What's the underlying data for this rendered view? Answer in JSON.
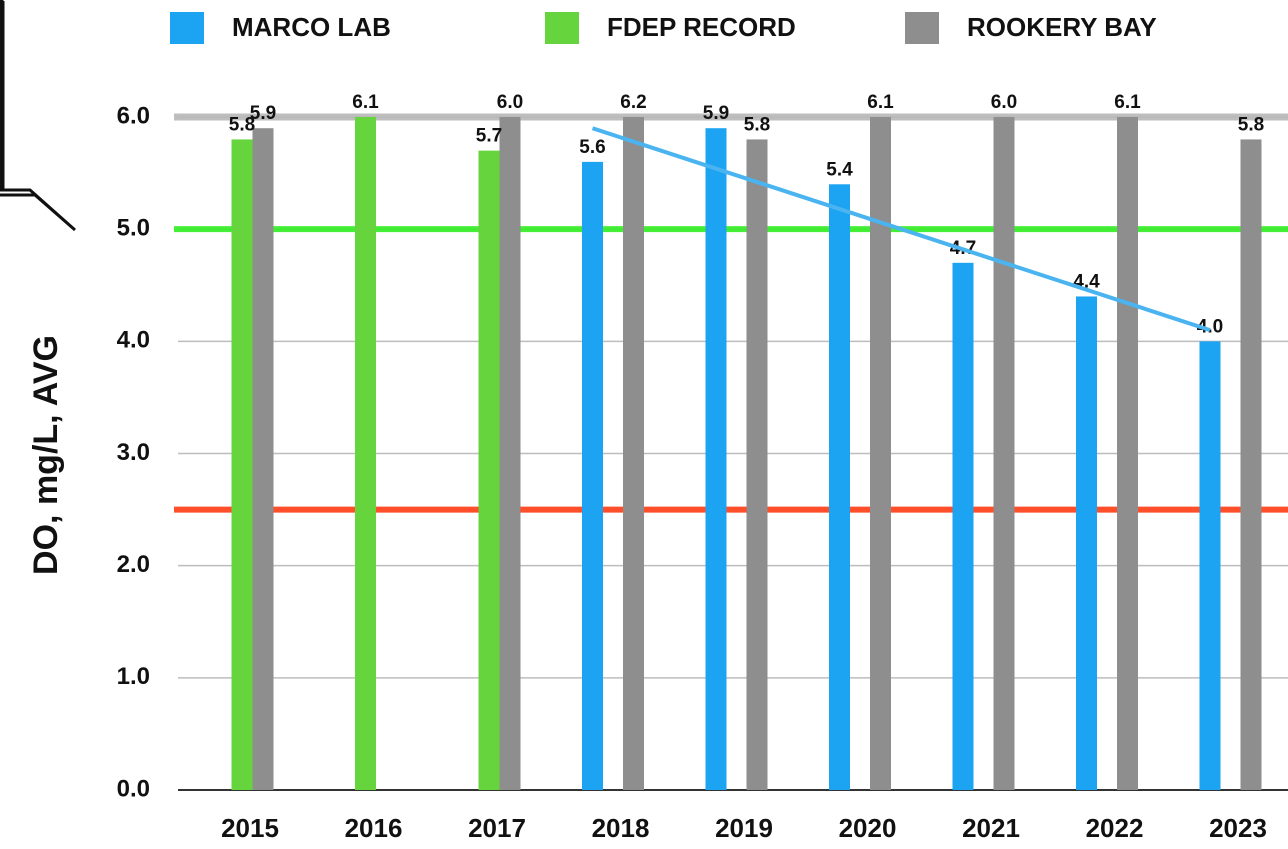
{
  "chart_data": {
    "type": "bar",
    "y_label": "DO, mg/L, AVG",
    "categories": [
      "2015",
      "2016",
      "2017",
      "2018",
      "2019",
      "2020",
      "2021",
      "2022",
      "2023"
    ],
    "series": [
      {
        "name": "MARCO LAB",
        "color": "#1ca3f2",
        "values": [
          null,
          null,
          null,
          5.6,
          5.9,
          5.4,
          4.7,
          4.4,
          4.0
        ],
        "value_labels": [
          null,
          null,
          null,
          "5.6",
          "5.9",
          "5.4",
          "4.7",
          "4.4",
          "4.0"
        ]
      },
      {
        "name": "FDEP RECORD",
        "color": "#66d43c",
        "values": [
          5.8,
          6.1,
          5.7,
          null,
          null,
          null,
          null,
          null,
          null
        ],
        "value_labels": [
          "5.8",
          "6.1",
          "5.7",
          null,
          null,
          null,
          null,
          null,
          null
        ]
      },
      {
        "name": "ROOKERY BAY",
        "color": "#8e8e8e",
        "values": [
          5.9,
          null,
          6.0,
          6.2,
          5.8,
          6.1,
          6.0,
          6.1,
          5.8
        ],
        "value_labels": [
          "5.9",
          null,
          "6.0",
          "6.2",
          "5.8",
          "6.1",
          "6.0",
          "6.1",
          "5.8"
        ]
      }
    ],
    "ylim": [
      0,
      6
    ],
    "yticks": [
      {
        "value": 0,
        "label": "0.0"
      },
      {
        "value": 1,
        "label": "1.0"
      },
      {
        "value": 2,
        "label": "2.0"
      },
      {
        "value": 3,
        "label": "3.0"
      },
      {
        "value": 4,
        "label": "4.0"
      },
      {
        "value": 5,
        "label": "5.0"
      },
      {
        "value": 6,
        "label": "6.0"
      }
    ],
    "grid": true,
    "legend": "top",
    "reference_lines": [
      {
        "value": 6.0,
        "color": "#b8b8b8"
      },
      {
        "value": 5.0,
        "color": "#33ee22"
      },
      {
        "value": 2.5,
        "color": "#ff3b14"
      }
    ],
    "trend_line": {
      "categories": [
        "2018",
        "2023"
      ],
      "values": [
        5.9,
        4.1
      ],
      "color": "#4ab4f0"
    }
  }
}
